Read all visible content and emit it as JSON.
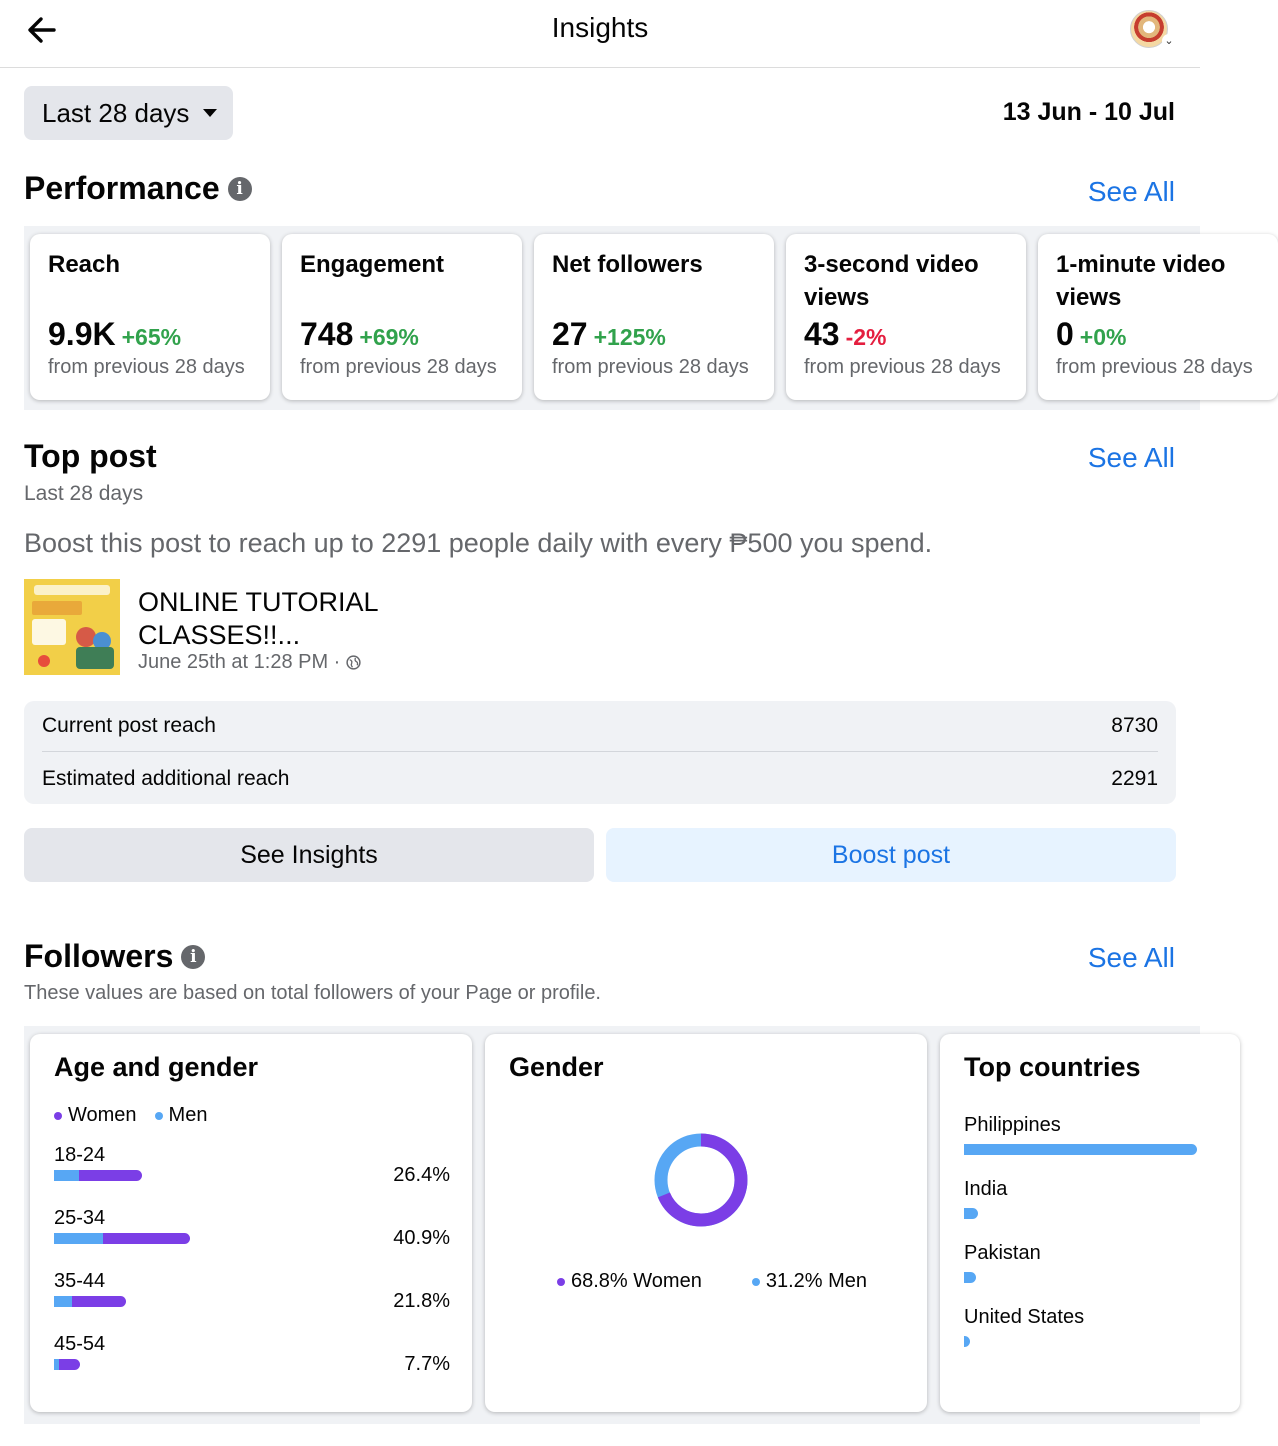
{
  "header": {
    "title": "Insights",
    "back_icon": "arrow-left-icon",
    "avatar_icon": "avatar"
  },
  "range": {
    "selected": "Last 28 days",
    "dates": "13 Jun - 10 Jul"
  },
  "performance": {
    "title": "Performance",
    "see_all": "See All",
    "cards": [
      {
        "label": "Reach",
        "value": "9.9K",
        "delta": "+65%",
        "trend": "up",
        "sub": "from previous 28 days"
      },
      {
        "label": "Engagement",
        "value": "748",
        "delta": "+69%",
        "trend": "up",
        "sub": "from previous 28 days"
      },
      {
        "label": "Net followers",
        "value": "27",
        "delta": "+125%",
        "trend": "up",
        "sub": "from previous 28 days"
      },
      {
        "label": "3-second video views",
        "value": "43",
        "delta": "-2%",
        "trend": "down",
        "sub": "from previous 28 days"
      },
      {
        "label": "1-minute video views",
        "value": "0",
        "delta": "+0%",
        "trend": "up",
        "sub": "from previous 28 days"
      }
    ]
  },
  "top_post": {
    "title": "Top post",
    "see_all": "See All",
    "period": "Last 28 days",
    "boost_text": "Boost this post to reach up to 2291 people daily with every ₱500 you spend.",
    "post_title": "ONLINE TUTORIAL CLASSES!!...",
    "post_meta": "June 25th at 1:28 PM ·",
    "current_reach_label": "Current post reach",
    "current_reach_value": "8730",
    "estimated_label": "Estimated additional reach",
    "estimated_value": "2291",
    "see_insights": "See Insights",
    "boost_post": "Boost post"
  },
  "followers": {
    "title": "Followers",
    "see_all": "See All",
    "description": "These values are based on total followers of your Page or profile.",
    "age_gender": {
      "title": "Age and gender",
      "legend_women": "Women",
      "legend_men": "Men",
      "rows": [
        {
          "range": "18-24",
          "pct": "26.4%",
          "total": 26.4,
          "men_share": 0.28
        },
        {
          "range": "25-34",
          "pct": "40.9%",
          "total": 40.9,
          "men_share": 0.36
        },
        {
          "range": "35-44",
          "pct": "21.8%",
          "total": 21.8,
          "men_share": 0.25
        },
        {
          "range": "45-54",
          "pct": "7.7%",
          "total": 7.7,
          "men_share": 0.2
        }
      ]
    },
    "gender": {
      "title": "Gender",
      "women_pct": 68.8,
      "men_pct": 31.2,
      "women_label": "68.8% Women",
      "men_label": "31.2% Men"
    },
    "countries": {
      "title": "Top countries",
      "items": [
        {
          "name": "Philippines",
          "share": 1.0
        },
        {
          "name": "India",
          "share": 0.06
        },
        {
          "name": "Pakistan",
          "share": 0.05
        },
        {
          "name": "United States",
          "share": 0.025
        }
      ]
    }
  },
  "colors": {
    "accent": "#1b74e4",
    "women": "#7b3ee6",
    "men": "#57a7f4",
    "positive": "#31a24c",
    "negative": "#e41e3f"
  }
}
